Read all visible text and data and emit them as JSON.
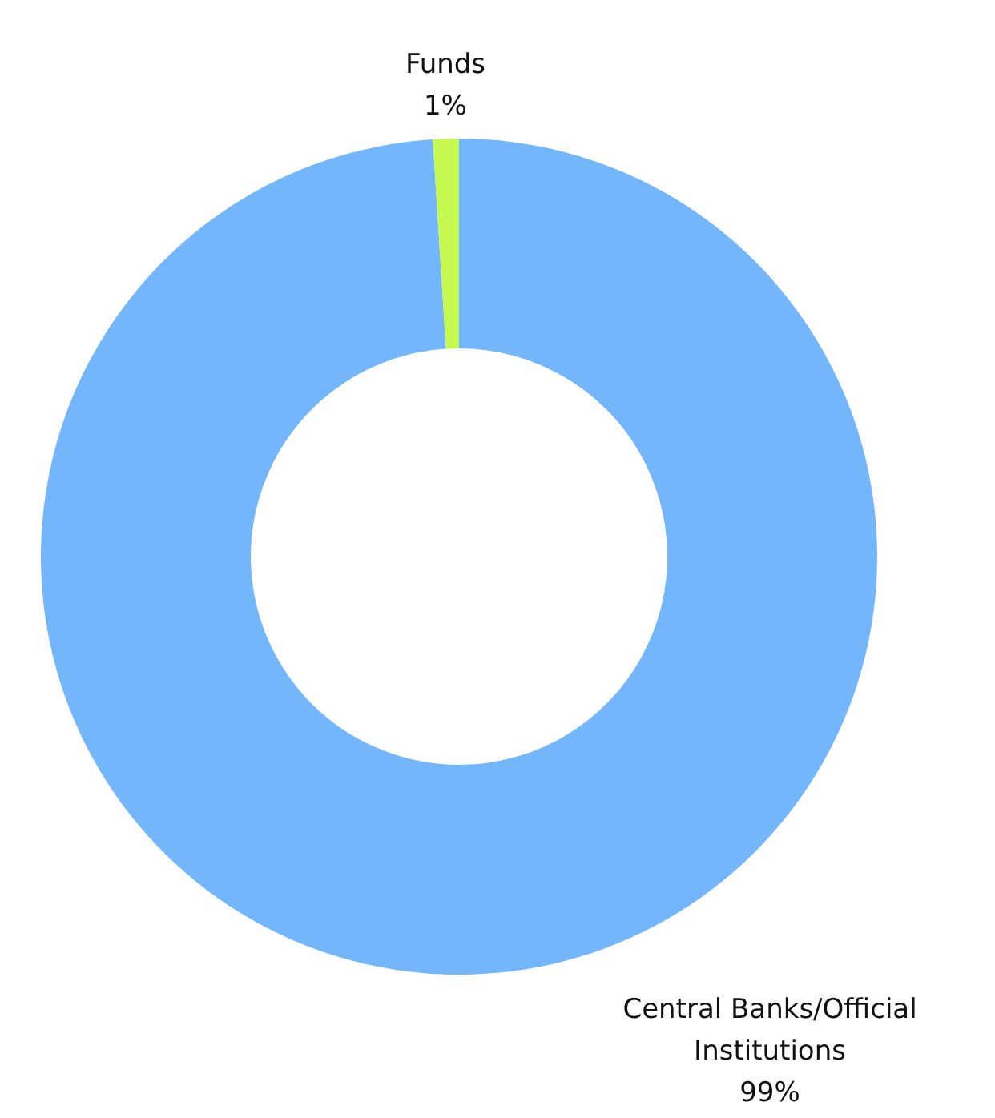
{
  "chart_data": {
    "type": "donut",
    "categories": [
      "Central Banks/Official Institutions",
      "Funds"
    ],
    "values": [
      99,
      1
    ],
    "value_labels": [
      "99%",
      "1%"
    ],
    "colors": [
      "#74b6fc",
      "#c6f94f"
    ]
  }
}
